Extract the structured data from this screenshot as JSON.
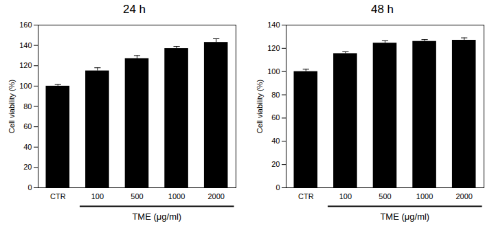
{
  "chart_data": [
    {
      "type": "bar",
      "title": "24 h",
      "categories": [
        "CTR",
        "100",
        "500",
        "1000",
        "2000"
      ],
      "values": [
        100,
        115,
        127,
        137,
        143
      ],
      "errors": [
        1.5,
        3,
        3,
        2,
        3.5
      ],
      "color": "#000000",
      "x_label": "TME (μg/ml)",
      "y_label": "Cell viability (%)",
      "ylim": [
        0,
        160
      ],
      "yticks": [
        0,
        20,
        40,
        60,
        80,
        100,
        120,
        140,
        160
      ]
    },
    {
      "type": "bar",
      "title": "48 h",
      "categories": [
        "CTR",
        "100",
        "500",
        "1000",
        "2000"
      ],
      "values": [
        100,
        115.5,
        124.5,
        126,
        127
      ],
      "errors": [
        2,
        1.5,
        2,
        1.5,
        2
      ],
      "color": "#000000",
      "x_label": "TME (μg/ml)",
      "y_label": "Cell viability (%)",
      "ylim": [
        0,
        140
      ],
      "yticks": [
        0,
        20,
        40,
        60,
        80,
        100,
        120,
        140
      ]
    }
  ]
}
